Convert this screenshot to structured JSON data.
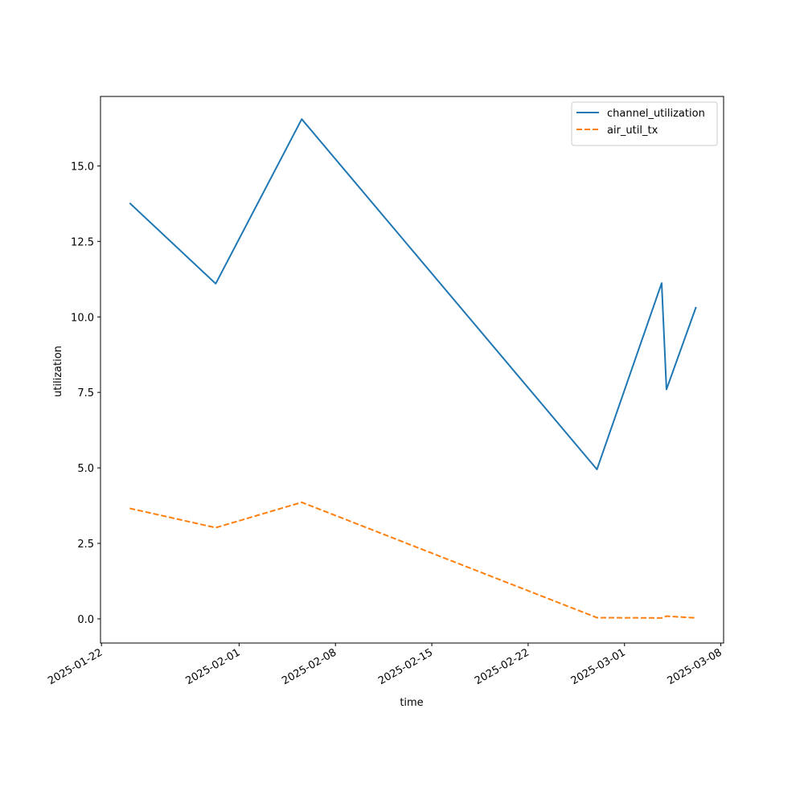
{
  "chart_data": {
    "type": "line",
    "title": "",
    "xlabel": "time",
    "ylabel": "utilization",
    "x_type": "date",
    "xlim": [
      "2025-01-22",
      "2025-03-08"
    ],
    "ylim": [
      -0.8,
      17.3
    ],
    "x_ticks": [
      "2025-01-22",
      "2025-02-01",
      "2025-02-08",
      "2025-02-15",
      "2025-02-22",
      "2025-03-01",
      "2025-03-08"
    ],
    "y_ticks": [
      0.0,
      2.5,
      5.0,
      7.5,
      10.0,
      12.5,
      15.0
    ],
    "y_tick_labels": [
      "0.0",
      "2.5",
      "5.0",
      "7.5",
      "10.0",
      "12.5",
      "15.0"
    ],
    "x": [
      "2025-01-24",
      "2025-01-30",
      "2025-02-05",
      "2025-02-27",
      "2025-03-04",
      "2025-03-04",
      "2025-03-06"
    ],
    "series": [
      {
        "name": "channel_utilization",
        "color": "#1f77b4",
        "style": "solid",
        "values": [
          13.77,
          11.1,
          16.55,
          4.95,
          11.12,
          7.6,
          10.33
        ]
      },
      {
        "name": "air_util_tx",
        "color": "#ff7f0e",
        "style": "dashed",
        "values": [
          3.66,
          3.02,
          3.86,
          0.04,
          0.03,
          0.09,
          0.03
        ]
      }
    ],
    "legend": "top-right",
    "grid": false
  }
}
